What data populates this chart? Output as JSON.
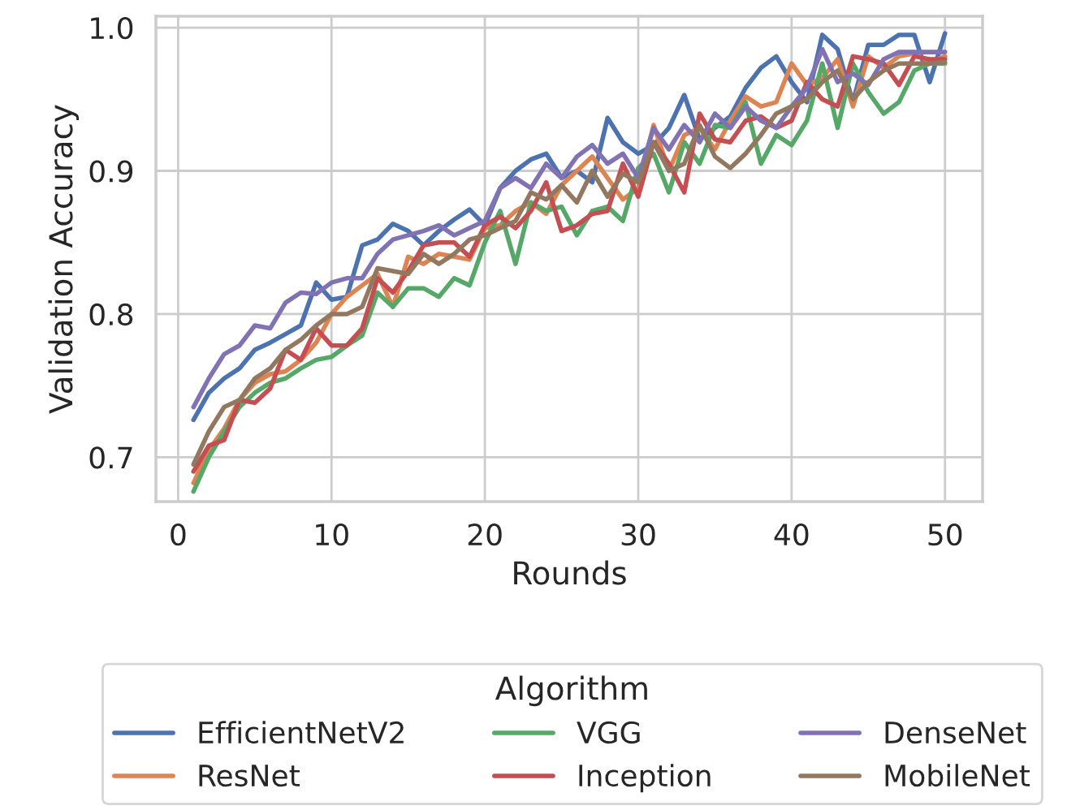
{
  "chart_data": {
    "type": "line",
    "xlabel": "Rounds",
    "ylabel": "Validation Accuracy",
    "legend_title": "Algorithm",
    "legend": "bottom",
    "grid": true,
    "line_style": "solid",
    "x": [
      1,
      2,
      3,
      4,
      5,
      6,
      7,
      8,
      9,
      10,
      11,
      12,
      13,
      14,
      15,
      16,
      17,
      18,
      19,
      20,
      21,
      22,
      23,
      24,
      25,
      26,
      27,
      28,
      29,
      30,
      31,
      32,
      33,
      34,
      35,
      36,
      37,
      38,
      39,
      40,
      41,
      42,
      43,
      44,
      45,
      46,
      47,
      48,
      49,
      50
    ],
    "xlim": [
      -1.45,
      52.45
    ],
    "xticks": [
      0,
      10,
      20,
      30,
      40,
      50
    ],
    "ylim": [
      0.669,
      1.008
    ],
    "yticks": [
      0.7,
      0.8,
      0.9,
      {
        "value": 1.0,
        "label": "1.0"
      }
    ],
    "series": [
      {
        "name": "EfficientNetV2",
        "color": "#4c72b0",
        "values": [
          0.726,
          0.745,
          0.755,
          0.762,
          0.775,
          0.78,
          0.786,
          0.792,
          0.822,
          0.81,
          0.812,
          0.848,
          0.852,
          0.863,
          0.858,
          0.848,
          0.858,
          0.866,
          0.873,
          0.862,
          0.888,
          0.9,
          0.908,
          0.912,
          0.895,
          0.9,
          0.892,
          0.937,
          0.92,
          0.912,
          0.918,
          0.93,
          0.953,
          0.922,
          0.93,
          0.938,
          0.958,
          0.972,
          0.98,
          0.962,
          0.948,
          0.995,
          0.985,
          0.948,
          0.988,
          0.988,
          0.995,
          0.995,
          0.962,
          0.996
        ]
      },
      {
        "name": "ResNet",
        "color": "#dd8452",
        "values": [
          0.682,
          0.705,
          0.72,
          0.74,
          0.752,
          0.758,
          0.76,
          0.768,
          0.78,
          0.8,
          0.812,
          0.82,
          0.828,
          0.805,
          0.84,
          0.835,
          0.842,
          0.84,
          0.838,
          0.86,
          0.862,
          0.872,
          0.878,
          0.87,
          0.89,
          0.9,
          0.91,
          0.895,
          0.88,
          0.888,
          0.932,
          0.9,
          0.925,
          0.93,
          0.915,
          0.935,
          0.952,
          0.945,
          0.948,
          0.975,
          0.96,
          0.965,
          0.978,
          0.945,
          0.98,
          0.972,
          0.98,
          0.982,
          0.976,
          0.98
        ]
      },
      {
        "name": "VGG",
        "color": "#55a868",
        "values": [
          0.676,
          0.7,
          0.718,
          0.735,
          0.745,
          0.752,
          0.755,
          0.762,
          0.768,
          0.77,
          0.778,
          0.785,
          0.815,
          0.805,
          0.818,
          0.818,
          0.812,
          0.825,
          0.82,
          0.85,
          0.872,
          0.835,
          0.878,
          0.872,
          0.875,
          0.855,
          0.872,
          0.875,
          0.865,
          0.902,
          0.912,
          0.885,
          0.92,
          0.905,
          0.932,
          0.93,
          0.948,
          0.905,
          0.925,
          0.918,
          0.935,
          0.975,
          0.93,
          0.975,
          0.955,
          0.94,
          0.948,
          0.97,
          0.975,
          0.975
        ]
      },
      {
        "name": "Inception",
        "color": "#c44e52",
        "values": [
          0.69,
          0.708,
          0.712,
          0.74,
          0.738,
          0.748,
          0.775,
          0.768,
          0.79,
          0.778,
          0.778,
          0.79,
          0.825,
          0.815,
          0.83,
          0.848,
          0.85,
          0.85,
          0.84,
          0.862,
          0.868,
          0.86,
          0.872,
          0.892,
          0.858,
          0.862,
          0.87,
          0.872,
          0.905,
          0.882,
          0.92,
          0.905,
          0.885,
          0.94,
          0.922,
          0.92,
          0.935,
          0.938,
          0.93,
          0.935,
          0.962,
          0.95,
          0.945,
          0.98,
          0.978,
          0.975,
          0.96,
          0.98,
          0.978,
          0.978
        ]
      },
      {
        "name": "DenseNet",
        "color": "#8172b3",
        "values": [
          0.735,
          0.755,
          0.772,
          0.778,
          0.792,
          0.79,
          0.808,
          0.815,
          0.814,
          0.822,
          0.825,
          0.825,
          0.842,
          0.852,
          0.855,
          0.858,
          0.862,
          0.855,
          0.86,
          0.865,
          0.888,
          0.895,
          0.888,
          0.905,
          0.895,
          0.91,
          0.918,
          0.905,
          0.912,
          0.895,
          0.93,
          0.915,
          0.932,
          0.92,
          0.94,
          0.93,
          0.945,
          0.935,
          0.93,
          0.945,
          0.958,
          0.985,
          0.962,
          0.968,
          0.96,
          0.978,
          0.983,
          0.983,
          0.983,
          0.983
        ]
      },
      {
        "name": "MobileNet",
        "color": "#937860",
        "values": [
          0.695,
          0.718,
          0.735,
          0.74,
          0.755,
          0.762,
          0.775,
          0.782,
          0.792,
          0.8,
          0.8,
          0.805,
          0.832,
          0.83,
          0.828,
          0.842,
          0.835,
          0.842,
          0.852,
          0.855,
          0.86,
          0.865,
          0.885,
          0.88,
          0.89,
          0.878,
          0.9,
          0.882,
          0.898,
          0.892,
          0.92,
          0.9,
          0.905,
          0.932,
          0.91,
          0.902,
          0.912,
          0.925,
          0.94,
          0.945,
          0.95,
          0.962,
          0.97,
          0.95,
          0.962,
          0.97,
          0.975,
          0.975,
          0.975,
          0.976
        ]
      }
    ]
  }
}
